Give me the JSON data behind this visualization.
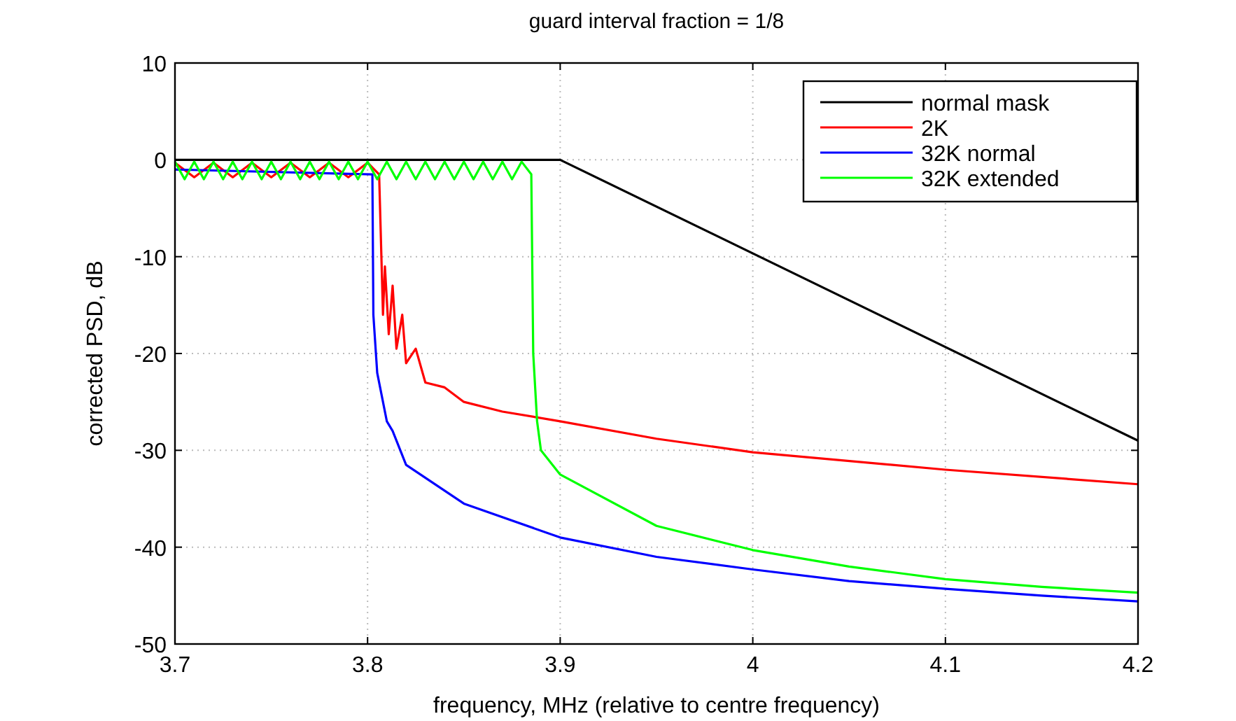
{
  "chart_data": {
    "type": "line",
    "title": "guard interval fraction = 1/8",
    "xlabel": "frequency, MHz (relative to centre frequency)",
    "ylabel": "corrected PSD, dB",
    "xlim": [
      3.7,
      4.2
    ],
    "xticks": [
      3.7,
      3.8,
      3.9,
      4,
      4.1,
      4.2
    ],
    "ylim": [
      -50,
      10
    ],
    "yticks": [
      -50,
      -40,
      -30,
      -20,
      -10,
      0,
      10
    ],
    "grid": true,
    "legend": "top right",
    "marker": "none",
    "line_style": "solid",
    "series": [
      {
        "name": "normal mask",
        "color": "#000000",
        "x": [
          3.7,
          3.9,
          4.2
        ],
        "values": [
          0,
          0,
          -29
        ]
      },
      {
        "name": "2K",
        "color": "#ff0000",
        "x": [
          3.7,
          3.71,
          3.72,
          3.73,
          3.74,
          3.75,
          3.76,
          3.77,
          3.78,
          3.79,
          3.8,
          3.806,
          3.808,
          3.809,
          3.811,
          3.813,
          3.815,
          3.818,
          3.82,
          3.825,
          3.83,
          3.84,
          3.85,
          3.87,
          3.9,
          3.95,
          4,
          4.1,
          4.2
        ],
        "values": [
          -0.3,
          -1.8,
          -0.3,
          -1.8,
          -0.3,
          -1.8,
          -0.3,
          -1.8,
          -0.3,
          -1.8,
          -0.3,
          -1.5,
          -16,
          -11,
          -18,
          -13,
          -19.5,
          -16,
          -21,
          -19.5,
          -23,
          -23.5,
          -25,
          -26,
          -27,
          -28.8,
          -30.2,
          -32,
          -33.5
        ]
      },
      {
        "name": "32K normal",
        "color": "#0000ff",
        "x": [
          3.7,
          3.8025,
          3.803,
          3.805,
          3.81,
          3.813,
          3.82,
          3.85,
          3.9,
          3.95,
          4,
          4.05,
          4.1,
          4.15,
          4.2
        ],
        "values": [
          -1,
          -1.5,
          -16,
          -22,
          -27,
          -28,
          -31.5,
          -35.5,
          -39,
          -41,
          -42.3,
          -43.5,
          -44.3,
          -45,
          -45.6
        ]
      },
      {
        "name": "32K extended",
        "color": "#00ff00",
        "x": [
          3.7,
          3.705,
          3.71,
          3.715,
          3.72,
          3.725,
          3.73,
          3.735,
          3.74,
          3.745,
          3.75,
          3.755,
          3.76,
          3.765,
          3.77,
          3.775,
          3.78,
          3.785,
          3.79,
          3.795,
          3.8,
          3.805,
          3.81,
          3.815,
          3.82,
          3.825,
          3.83,
          3.835,
          3.84,
          3.845,
          3.85,
          3.855,
          3.86,
          3.865,
          3.87,
          3.875,
          3.88,
          3.885,
          3.886,
          3.888,
          3.89,
          3.9,
          3.95,
          4,
          4.05,
          4.1,
          4.15,
          4.2
        ],
        "values": [
          -0.2,
          -2,
          -0.2,
          -2,
          -0.2,
          -2,
          -0.2,
          -2,
          -0.2,
          -2,
          -0.2,
          -2,
          -0.2,
          -2,
          -0.2,
          -2,
          -0.2,
          -2,
          -0.2,
          -2,
          -0.2,
          -2,
          -0.2,
          -2,
          -0.2,
          -2,
          -0.2,
          -2,
          -0.2,
          -2,
          -0.2,
          -2,
          -0.2,
          -2,
          -0.2,
          -2,
          -0.2,
          -1.5,
          -20,
          -27,
          -30,
          -32.5,
          -37.8,
          -40.3,
          -42,
          -43.3,
          -44.1,
          -44.7
        ]
      }
    ]
  }
}
